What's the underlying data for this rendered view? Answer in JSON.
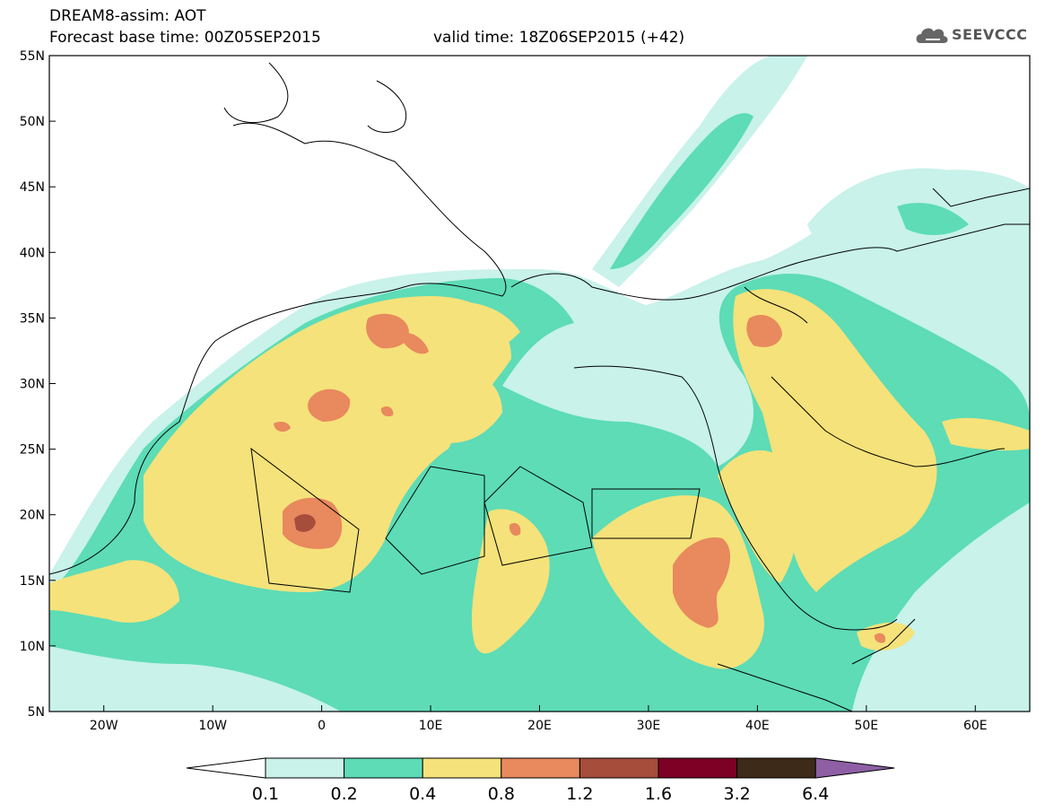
{
  "header": {
    "model_line": "DREAM8-assim: AOT",
    "base_time": "Forecast base time: 00Z05SEP2015",
    "valid_time": "valid time: 18Z06SEP2015 (+42)"
  },
  "logo": {
    "text": "SEEVCCC",
    "icon": "cloud-icon"
  },
  "map": {
    "lon_range": [
      -25,
      65
    ],
    "lat_range": [
      5,
      55
    ],
    "lat_labels": [
      "55N",
      "50N",
      "45N",
      "40N",
      "35N",
      "30N",
      "25N",
      "20N",
      "15N",
      "10N",
      "5N"
    ],
    "lon_labels": [
      "20W",
      "10W",
      "0",
      "10E",
      "20E",
      "30E",
      "40E",
      "50E",
      "60E"
    ]
  },
  "colorbar": {
    "labels": [
      "0.1",
      "0.2",
      "0.4",
      "0.8",
      "1.2",
      "1.6",
      "3.2",
      "6.4"
    ],
    "colors": [
      "#ffffff",
      "#c8f2ea",
      "#5ddcb6",
      "#f5e27a",
      "#e8895e",
      "#a64d3c",
      "#7d0025",
      "#3d2a18",
      "#8f5fa5"
    ]
  }
}
